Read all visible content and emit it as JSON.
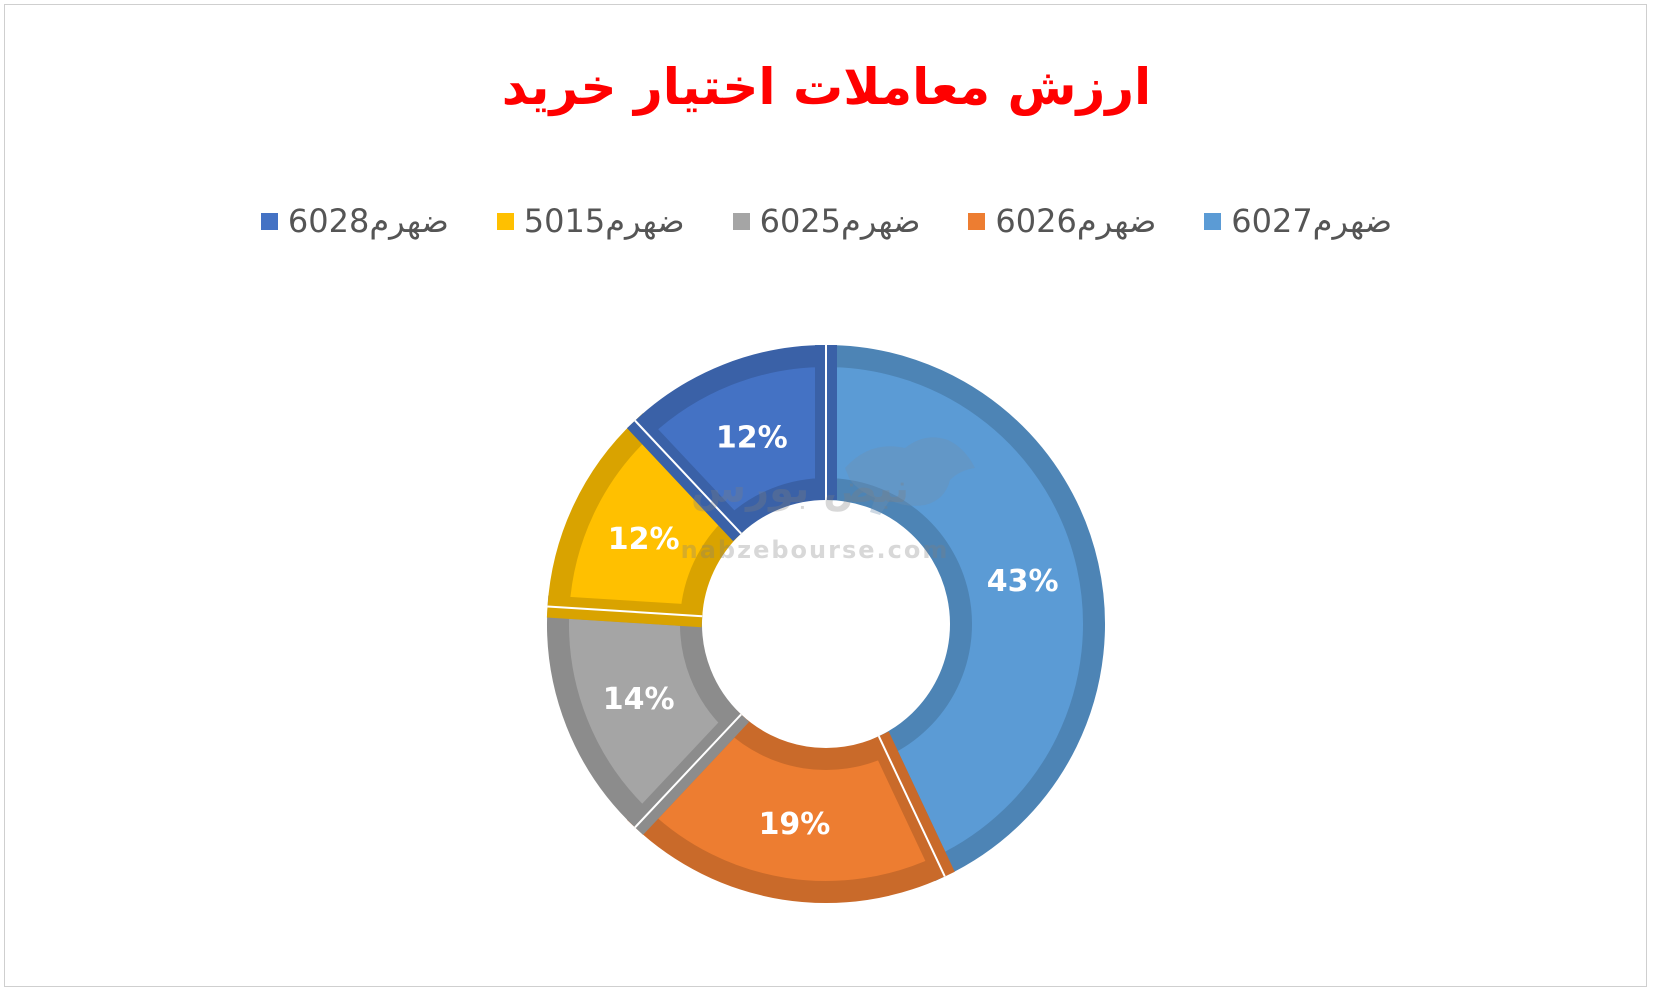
{
  "chart_data": {
    "type": "donut",
    "title": "ارزش معاملات اختیار خرید",
    "legend_position": "top",
    "categories": [
      "ضهرم6027",
      "ضهرم6026",
      "ضهرم6025",
      "ضهرم5015",
      "ضهرم6028"
    ],
    "values": [
      43,
      19,
      14,
      12,
      12
    ],
    "labels": [
      "43%",
      "19%",
      "14%",
      "12%",
      "12%"
    ],
    "colors": [
      "#5b9bd5",
      "#ed7d31",
      "#a5a5a5",
      "#ffc000",
      "#4472c4"
    ]
  },
  "watermark": {
    "text": "nabzebourse.com",
    "logo_text": "نبض بورس",
    "icon": "bull-icon"
  }
}
